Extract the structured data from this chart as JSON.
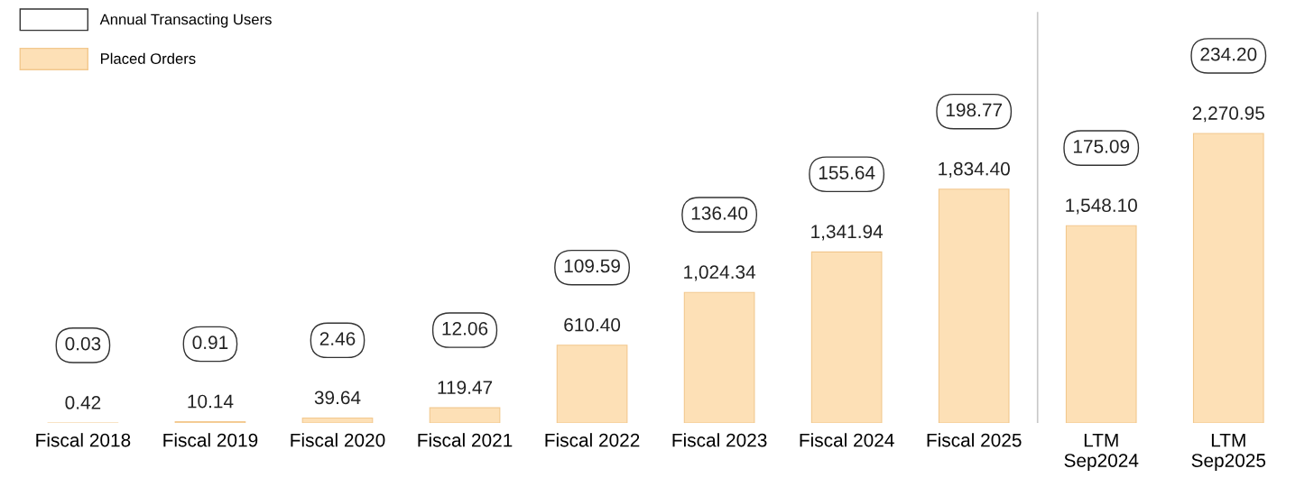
{
  "chart_data": {
    "type": "bar",
    "categories": [
      "Fiscal 2018",
      "Fiscal 2019",
      "Fiscal 2020",
      "Fiscal 2021",
      "Fiscal 2022",
      "Fiscal 2023",
      "Fiscal 2024",
      "Fiscal 2025",
      "LTM\nSep2024",
      "LTM\nSep2025"
    ],
    "series": [
      {
        "name": "Placed Orders",
        "color": "#fde0b6",
        "values": [
          0.42,
          10.14,
          39.64,
          119.47,
          610.4,
          1024.34,
          1341.94,
          1834.4,
          1548.1,
          2270.95
        ],
        "value_labels": [
          "0.42",
          "10.14",
          "39.64",
          "119.47",
          "610.40",
          "1,024.34",
          "1,341.94",
          "1,834.40",
          "1,548.10",
          "2,270.95"
        ]
      }
    ],
    "annotations": [
      "Annual Transacting Users",
      "0.03",
      "0.91",
      "2.46",
      "12.06",
      "109.59",
      "136.40",
      "155.64",
      "198.77",
      "175.09",
      "234.20"
    ],
    "legend": "top left"
  }
}
